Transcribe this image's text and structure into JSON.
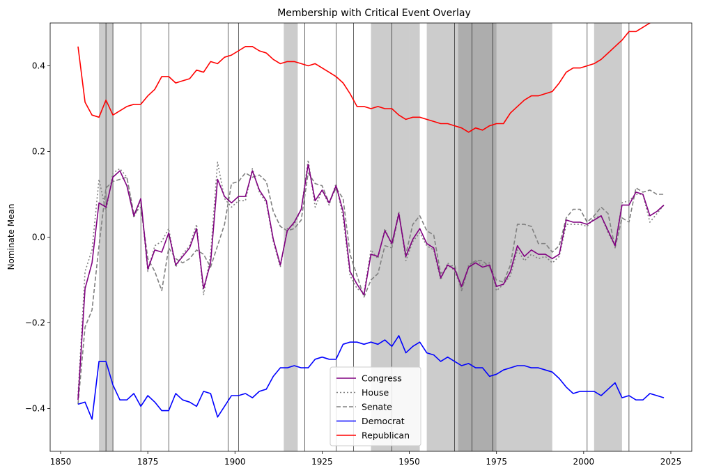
{
  "chart_data": {
    "type": "line",
    "title": "Membership with Critical Event Overlay",
    "xlabel": "",
    "ylabel": "Nominate Mean",
    "xlim": [
      1847,
      2031
    ],
    "ylim": [
      -0.5,
      0.5
    ],
    "xticks": [
      1850,
      1875,
      1900,
      1925,
      1950,
      1975,
      2000,
      2025
    ],
    "yticks": [
      -0.4,
      -0.2,
      0.0,
      0.2,
      0.4
    ],
    "ytick_labels": [
      "−0.4",
      "−0.2",
      "0.0",
      "0.2",
      "0.4"
    ],
    "grid": false,
    "legend_position": "bottom-center",
    "shaded_periods": [
      [
        1861,
        1865
      ],
      [
        1914,
        1918
      ],
      [
        1939,
        1945
      ],
      [
        1945,
        1950
      ],
      [
        1950,
        1953
      ],
      [
        1955,
        1975
      ],
      [
        1964,
        1975
      ],
      [
        1975,
        1991
      ],
      [
        2003,
        2011
      ]
    ],
    "event_lines": [
      1863,
      1865,
      1873,
      1881,
      1898,
      1901,
      1920,
      1929,
      1934,
      1945,
      1963,
      1968,
      1974,
      2001,
      2013
    ],
    "x": [
      1855,
      1857,
      1859,
      1861,
      1863,
      1865,
      1867,
      1869,
      1871,
      1873,
      1875,
      1877,
      1879,
      1881,
      1883,
      1885,
      1887,
      1889,
      1891,
      1893,
      1895,
      1897,
      1899,
      1901,
      1903,
      1905,
      1907,
      1909,
      1911,
      1913,
      1915,
      1917,
      1919,
      1921,
      1923,
      1925,
      1927,
      1929,
      1931,
      1933,
      1935,
      1937,
      1939,
      1941,
      1943,
      1945,
      1947,
      1949,
      1951,
      1953,
      1955,
      1957,
      1959,
      1961,
      1963,
      1965,
      1967,
      1969,
      1971,
      1973,
      1975,
      1977,
      1979,
      1981,
      1983,
      1985,
      1987,
      1989,
      1991,
      1993,
      1995,
      1997,
      1999,
      2001,
      2003,
      2005,
      2007,
      2009,
      2011,
      2013,
      2015,
      2017,
      2019,
      2021,
      2023
    ],
    "series": [
      {
        "name": "Congress",
        "color": "#800080",
        "dash": "solid",
        "values": [
          -0.38,
          -0.12,
          -0.06,
          0.08,
          0.07,
          0.14,
          0.155,
          0.12,
          0.05,
          0.09,
          -0.075,
          -0.03,
          -0.035,
          0.01,
          -0.065,
          -0.045,
          -0.025,
          0.02,
          -0.12,
          -0.06,
          0.135,
          0.095,
          0.08,
          0.095,
          0.095,
          0.155,
          0.11,
          0.085,
          -0.005,
          -0.065,
          0.015,
          0.035,
          0.065,
          0.17,
          0.085,
          0.11,
          0.08,
          0.12,
          0.06,
          -0.08,
          -0.11,
          -0.135,
          -0.04,
          -0.045,
          0.015,
          -0.015,
          0.055,
          -0.045,
          -0.005,
          0.02,
          -0.015,
          -0.025,
          -0.095,
          -0.065,
          -0.075,
          -0.115,
          -0.07,
          -0.06,
          -0.07,
          -0.065,
          -0.115,
          -0.11,
          -0.08,
          -0.02,
          -0.045,
          -0.03,
          -0.04,
          -0.04,
          -0.05,
          -0.04,
          0.04,
          0.035,
          0.035,
          0.03,
          0.04,
          0.05,
          0.015,
          -0.02,
          0.075,
          0.075,
          0.105,
          0.1,
          0.05,
          0.06,
          0.075
        ]
      },
      {
        "name": "House",
        "color": "#808080",
        "dash": "dotted",
        "values": [
          -0.37,
          -0.08,
          -0.03,
          0.135,
          0.06,
          0.15,
          0.16,
          0.14,
          0.045,
          0.085,
          -0.08,
          -0.02,
          -0.01,
          0.02,
          -0.07,
          -0.04,
          -0.02,
          0.03,
          -0.135,
          -0.04,
          0.175,
          0.09,
          0.07,
          0.085,
          0.085,
          0.16,
          0.105,
          0.08,
          -0.01,
          -0.07,
          0.02,
          0.03,
          0.065,
          0.18,
          0.07,
          0.11,
          0.075,
          0.125,
          0.045,
          -0.09,
          -0.12,
          -0.13,
          -0.03,
          -0.05,
          0.02,
          -0.02,
          0.06,
          -0.055,
          -0.01,
          0.01,
          -0.02,
          -0.03,
          -0.1,
          -0.06,
          -0.08,
          -0.12,
          -0.065,
          -0.055,
          -0.065,
          -0.06,
          -0.125,
          -0.11,
          -0.09,
          -0.03,
          -0.055,
          -0.04,
          -0.05,
          -0.045,
          -0.06,
          -0.045,
          0.03,
          0.03,
          0.03,
          0.025,
          0.045,
          0.05,
          0.01,
          -0.02,
          0.08,
          0.085,
          0.1,
          0.1,
          0.035,
          0.055,
          0.075
        ]
      },
      {
        "name": "Senate",
        "color": "#808080",
        "dash": "dashed",
        "values": [
          -0.39,
          -0.21,
          -0.17,
          -0.02,
          0.115,
          0.13,
          0.135,
          0.14,
          0.055,
          0.07,
          -0.05,
          -0.08,
          -0.125,
          -0.025,
          -0.05,
          -0.06,
          -0.05,
          -0.03,
          -0.04,
          -0.07,
          -0.02,
          0.03,
          0.125,
          0.13,
          0.15,
          0.14,
          0.145,
          0.13,
          0.06,
          0.025,
          0.015,
          0.02,
          0.04,
          0.15,
          0.125,
          0.12,
          0.08,
          0.115,
          0.09,
          -0.04,
          -0.09,
          -0.14,
          -0.1,
          -0.085,
          -0.02,
          -0.025,
          0.055,
          -0.04,
          0.03,
          0.05,
          0.015,
          0.005,
          -0.085,
          -0.07,
          -0.065,
          -0.125,
          -0.07,
          -0.055,
          -0.055,
          -0.07,
          -0.1,
          -0.105,
          -0.065,
          0.03,
          0.03,
          0.025,
          -0.015,
          -0.015,
          -0.035,
          -0.02,
          0.045,
          0.065,
          0.065,
          0.035,
          0.05,
          0.07,
          0.055,
          -0.025,
          0.045,
          0.035,
          0.115,
          0.105,
          0.11,
          0.1,
          0.1
        ]
      },
      {
        "name": "Democrat",
        "color": "#0000ff",
        "dash": "solid",
        "values": [
          -0.39,
          -0.385,
          -0.425,
          -0.29,
          -0.29,
          -0.345,
          -0.38,
          -0.38,
          -0.365,
          -0.395,
          -0.37,
          -0.385,
          -0.405,
          -0.405,
          -0.365,
          -0.38,
          -0.385,
          -0.395,
          -0.36,
          -0.365,
          -0.42,
          -0.395,
          -0.37,
          -0.37,
          -0.365,
          -0.375,
          -0.36,
          -0.355,
          -0.325,
          -0.305,
          -0.305,
          -0.3,
          -0.305,
          -0.305,
          -0.285,
          -0.28,
          -0.285,
          -0.285,
          -0.25,
          -0.245,
          -0.245,
          -0.25,
          -0.245,
          -0.25,
          -0.24,
          -0.255,
          -0.23,
          -0.27,
          -0.255,
          -0.245,
          -0.27,
          -0.275,
          -0.29,
          -0.28,
          -0.29,
          -0.3,
          -0.295,
          -0.305,
          -0.305,
          -0.325,
          -0.32,
          -0.31,
          -0.305,
          -0.3,
          -0.3,
          -0.305,
          -0.305,
          -0.31,
          -0.315,
          -0.33,
          -0.35,
          -0.365,
          -0.36,
          -0.36,
          -0.36,
          -0.37,
          -0.355,
          -0.34,
          -0.375,
          -0.37,
          -0.38,
          -0.38,
          -0.365,
          -0.37,
          -0.375
        ]
      },
      {
        "name": "Republican",
        "color": "#ff0000",
        "dash": "solid",
        "values": [
          0.445,
          0.315,
          0.285,
          0.28,
          0.32,
          0.285,
          0.295,
          0.305,
          0.31,
          0.31,
          0.33,
          0.345,
          0.375,
          0.375,
          0.36,
          0.365,
          0.37,
          0.39,
          0.385,
          0.41,
          0.405,
          0.42,
          0.425,
          0.435,
          0.445,
          0.445,
          0.435,
          0.43,
          0.415,
          0.405,
          0.41,
          0.41,
          0.405,
          0.4,
          0.405,
          0.395,
          0.385,
          0.375,
          0.36,
          0.335,
          0.305,
          0.305,
          0.3,
          0.305,
          0.3,
          0.3,
          0.285,
          0.275,
          0.28,
          0.28,
          0.275,
          0.27,
          0.265,
          0.265,
          0.26,
          0.255,
          0.245,
          0.255,
          0.25,
          0.26,
          0.265,
          0.265,
          0.29,
          0.305,
          0.32,
          0.33,
          0.33,
          0.335,
          0.34,
          0.36,
          0.385,
          0.395,
          0.395,
          0.4,
          0.405,
          0.415,
          0.43,
          0.445,
          0.46,
          0.48,
          0.48,
          0.49,
          0.5,
          0.51,
          0.52
        ]
      }
    ]
  }
}
